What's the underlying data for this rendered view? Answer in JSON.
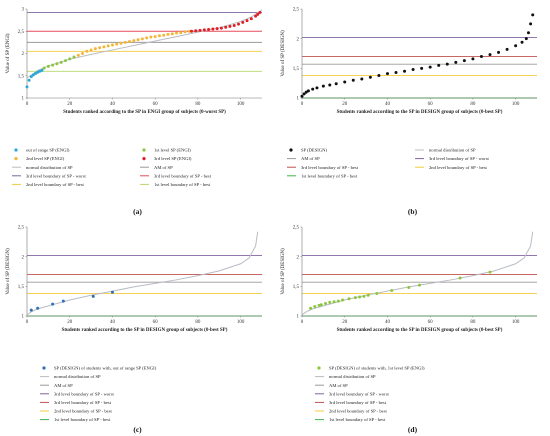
{
  "chart_data": [
    {
      "panel": "a",
      "type": "scatter",
      "panel_label": "(a)",
      "xlabel": "Students ranked according to the SP in ENGI group of subjects (0-worst SP)",
      "ylabel": "Value of SP (ENGI)",
      "xlim": [
        0,
        110
      ],
      "ylim": [
        1,
        3
      ],
      "xticks": [
        "0",
        "20",
        "40",
        "60",
        "80",
        "100"
      ],
      "yticks": [
        "1",
        "1,5",
        "2",
        "2,5",
        "3"
      ],
      "grid": false,
      "legend_columns": 2,
      "legend": [
        {
          "label": "out of range SP (ENGI)",
          "kind": "marker",
          "color": "#2ba8d6"
        },
        {
          "label": "1st level SP (ENGI)",
          "kind": "marker",
          "color": "#8cc63f"
        },
        {
          "label": "2nd level SP (ENGI)",
          "kind": "marker",
          "color": "#f4b63a"
        },
        {
          "label": "3rd level SP (ENGI)",
          "kind": "marker",
          "color": "#e21f26"
        },
        {
          "label": "normal distribution of SP",
          "kind": "line",
          "color": "#b8bcc4"
        },
        {
          "label": "AM of SP",
          "kind": "line",
          "color": "#9a9a9a"
        },
        {
          "label": "3rd level boundary of SP - worst",
          "kind": "line",
          "color": "#8064a2"
        },
        {
          "label": "3rd level boundary of SP - best",
          "kind": "line",
          "color": "#e64b5a"
        },
        {
          "label": "2nd level boundary of SP - best",
          "kind": "line",
          "color": "#f2cc3c"
        },
        {
          "label": "1st level boundary of SP - best",
          "kind": "line",
          "color": "#b7d86b"
        }
      ],
      "hlines": [
        {
          "name": "3rd level boundary of SP - worst",
          "y": 2.92,
          "color": "#8064a2"
        },
        {
          "name": "3rd level boundary of SP - best",
          "y": 2.5,
          "color": "#e64b5a"
        },
        {
          "name": "AM of SP",
          "y": 2.25,
          "color": "#9a9a9a"
        },
        {
          "name": "2nd level boundary of SP - best",
          "y": 2.05,
          "color": "#f2cc3c"
        },
        {
          "name": "1st level boundary of SP - best",
          "y": 1.6,
          "color": "#b7d86b"
        }
      ],
      "normal_curve": {
        "color": "#b8bcc4",
        "x": [
          0,
          5,
          10,
          20,
          30,
          40,
          50,
          60,
          70,
          80,
          90,
          100,
          105,
          110
        ],
        "y": [
          1.45,
          1.62,
          1.72,
          1.87,
          1.98,
          2.08,
          2.18,
          2.28,
          2.38,
          2.48,
          2.58,
          2.72,
          2.82,
          2.98
        ]
      },
      "series": [
        {
          "name": "out of range SP (ENGI)",
          "color": "#2ba8d6",
          "x": [
            0,
            1,
            2,
            3,
            4,
            5,
            6,
            7
          ],
          "y": [
            1.25,
            1.4,
            1.48,
            1.52,
            1.55,
            1.58,
            1.6,
            1.62
          ]
        },
        {
          "name": "1st level SP (ENGI)",
          "color": "#8cc63f",
          "x": [
            8,
            10,
            12,
            14,
            16,
            18,
            20,
            22
          ],
          "y": [
            1.67,
            1.71,
            1.74,
            1.77,
            1.8,
            1.84,
            1.88,
            1.92
          ]
        },
        {
          "name": "2nd level SP (ENGI)",
          "color": "#f4b63a",
          "x": [
            24,
            26,
            28,
            30,
            32,
            34,
            36,
            38,
            40,
            42,
            44,
            46,
            48,
            50,
            52,
            54,
            56,
            58,
            60,
            62,
            64,
            66,
            68,
            70,
            72,
            74,
            76
          ],
          "y": [
            1.96,
            2.0,
            2.05,
            2.08,
            2.11,
            2.13,
            2.15,
            2.17,
            2.19,
            2.21,
            2.23,
            2.25,
            2.27,
            2.29,
            2.31,
            2.33,
            2.35,
            2.37,
            2.38,
            2.4,
            2.41,
            2.43,
            2.44,
            2.46,
            2.47,
            2.49,
            2.5
          ]
        },
        {
          "name": "3rd level SP (ENGI)",
          "color": "#e21f26",
          "x": [
            77,
            79,
            81,
            83,
            85,
            87,
            89,
            91,
            93,
            95,
            97,
            99,
            101,
            103,
            105,
            107,
            108,
            109
          ],
          "y": [
            2.5,
            2.51,
            2.52,
            2.53,
            2.54,
            2.55,
            2.56,
            2.57,
            2.59,
            2.61,
            2.63,
            2.66,
            2.7,
            2.74,
            2.78,
            2.84,
            2.88,
            2.92
          ]
        }
      ]
    },
    {
      "panel": "b",
      "type": "scatter",
      "panel_label": "(b)",
      "xlabel": "Students ranked according to the SP in DESIGN group of subjects (0-best SP)",
      "ylabel": "Value of SP (DESIGN)",
      "xlim": [
        0,
        110
      ],
      "ylim": [
        1,
        2.5
      ],
      "xticks": [
        "0",
        "20",
        "40",
        "60",
        "80",
        "100"
      ],
      "yticks": [
        "1",
        "1,5",
        "2",
        "2,5"
      ],
      "grid": false,
      "legend_columns": 2,
      "legend": [
        {
          "label": "SP (DESIGN)",
          "kind": "marker",
          "color": "#111111"
        },
        {
          "label": "normal distribution of SP",
          "kind": "line",
          "color": "#b8bcc4"
        },
        {
          "label": "AM of SP",
          "kind": "line",
          "color": "#9a9a9a"
        },
        {
          "label": "3rd level boundary of SP - worst",
          "kind": "line",
          "color": "#8064a2"
        },
        {
          "label": "3rd level boundary of SP - best",
          "kind": "line",
          "color": "#c0504d"
        },
        {
          "label": "2nd level boundary of SP - best",
          "kind": "line",
          "color": "#f2cc3c"
        },
        {
          "label": "1st level boundary of SP - best",
          "kind": "line",
          "color": "#3ab54a"
        }
      ],
      "hlines": [
        {
          "name": "3rd level boundary of SP - worst",
          "y": 2.02,
          "color": "#8064a2"
        },
        {
          "name": "3rd level boundary of SP - best",
          "y": 1.7,
          "color": "#c0504d"
        },
        {
          "name": "AM of SP",
          "y": 1.57,
          "color": "#9a9a9a"
        },
        {
          "name": "2nd level boundary of SP - best",
          "y": 1.38,
          "color": "#f2cc3c"
        },
        {
          "name": "1st level boundary of SP - best",
          "y": 1.0,
          "color": "#3ab54a"
        }
      ],
      "normal_curve": null,
      "series": [
        {
          "name": "SP (DESIGN)",
          "color": "#111111",
          "x": [
            0,
            1,
            2,
            3,
            5,
            7,
            10,
            13,
            16,
            20,
            24,
            28,
            32,
            36,
            40,
            44,
            48,
            52,
            56,
            60,
            64,
            68,
            72,
            76,
            80,
            84,
            88,
            92,
            96,
            100,
            103,
            105,
            106,
            107,
            108
          ],
          "y": [
            1.03,
            1.07,
            1.1,
            1.12,
            1.15,
            1.17,
            1.2,
            1.22,
            1.24,
            1.27,
            1.3,
            1.32,
            1.35,
            1.38,
            1.41,
            1.43,
            1.45,
            1.48,
            1.5,
            1.52,
            1.55,
            1.57,
            1.6,
            1.63,
            1.66,
            1.7,
            1.73,
            1.77,
            1.82,
            1.88,
            1.94,
            2.0,
            2.1,
            2.25,
            2.4
          ]
        }
      ]
    },
    {
      "panel": "c",
      "type": "scatter",
      "panel_label": "(c)",
      "xlabel": "Students ranked according to the SP in DESIGN group of subjects (0-best SP)",
      "ylabel": "Value of SP (DESIGN)",
      "xlim": [
        0,
        110
      ],
      "ylim": [
        1,
        2.5
      ],
      "xticks": [
        "0",
        "20",
        "40",
        "60",
        "80",
        "100"
      ],
      "yticks": [
        "1",
        "1,5",
        "2",
        "2,5"
      ],
      "grid": false,
      "legend_columns": 1,
      "legend": [
        {
          "label": "SP (DESIGN) of students with, out of range SP (ENGI)",
          "kind": "marker",
          "color": "#2f6fb5"
        },
        {
          "label": "normal distribution of SP",
          "kind": "line",
          "color": "#b8bcc4"
        },
        {
          "label": "AM of SP",
          "kind": "line",
          "color": "#9a9a9a"
        },
        {
          "label": "3rd level boundary of SP - worst",
          "kind": "line",
          "color": "#8064a2"
        },
        {
          "label": "3rd level boundary of SP - best",
          "kind": "line",
          "color": "#c0504d"
        },
        {
          "label": "2nd level boundary of SP - best",
          "kind": "line",
          "color": "#f2cc3c"
        },
        {
          "label": "1st level boundary of SP - best",
          "kind": "line",
          "color": "#3ab54a"
        }
      ],
      "hlines": [
        {
          "name": "3rd level boundary of SP - worst",
          "y": 2.02,
          "color": "#8064a2"
        },
        {
          "name": "3rd level boundary of SP - best",
          "y": 1.7,
          "color": "#c0504d"
        },
        {
          "name": "AM of SP",
          "y": 1.57,
          "color": "#9a9a9a"
        },
        {
          "name": "2nd level boundary of SP - best",
          "y": 1.38,
          "color": "#f2cc3c"
        },
        {
          "name": "1st level boundary of SP - best",
          "y": 1.0,
          "color": "#3ab54a"
        }
      ],
      "normal_curve": {
        "color": "#b8bcc4",
        "x": [
          0,
          2,
          5,
          10,
          20,
          30,
          40,
          50,
          60,
          70,
          80,
          90,
          100,
          104,
          107,
          108
        ],
        "y": [
          1.02,
          1.07,
          1.12,
          1.17,
          1.27,
          1.35,
          1.42,
          1.49,
          1.55,
          1.61,
          1.68,
          1.76,
          1.88,
          1.98,
          2.18,
          2.42
        ]
      },
      "series": [
        {
          "name": "SP (DESIGN) of students with, out of range SP (ENGI)",
          "color": "#2f6fb5",
          "x": [
            2,
            5,
            12,
            17,
            31,
            40
          ],
          "y": [
            1.1,
            1.13,
            1.2,
            1.25,
            1.33,
            1.4
          ]
        }
      ]
    },
    {
      "panel": "d",
      "type": "scatter",
      "panel_label": "(d)",
      "xlabel": "Students ranked according to the SP in DESIGN group of subjects (0-best SP)",
      "ylabel": "Value of SP (DESIGN)",
      "xlim": [
        0,
        110
      ],
      "ylim": [
        1,
        2.5
      ],
      "xticks": [
        "0",
        "20",
        "40",
        "60",
        "80",
        "100"
      ],
      "yticks": [
        "1",
        "1,5",
        "2",
        "2,5"
      ],
      "grid": false,
      "legend_columns": 1,
      "legend": [
        {
          "label": "SP (DESIGN) of students with, 1st level SP (ENGI)",
          "kind": "marker",
          "color": "#8cc63f"
        },
        {
          "label": "normal distribution of SP",
          "kind": "line",
          "color": "#b8bcc4"
        },
        {
          "label": "AM of SP",
          "kind": "line",
          "color": "#9a9a9a"
        },
        {
          "label": "3rd level boundary of SP - worst",
          "kind": "line",
          "color": "#8064a2"
        },
        {
          "label": "3rd level boundary of SP - best",
          "kind": "line",
          "color": "#c0504d"
        },
        {
          "label": "2nd level boundary of SP - best",
          "kind": "line",
          "color": "#f2cc3c"
        },
        {
          "label": "1st level boundary of SP - best",
          "kind": "line",
          "color": "#3ab54a"
        }
      ],
      "hlines": [
        {
          "name": "3rd level boundary of SP - worst",
          "y": 2.02,
          "color": "#8064a2"
        },
        {
          "name": "3rd level boundary of SP - best",
          "y": 1.7,
          "color": "#c0504d"
        },
        {
          "name": "AM of SP",
          "y": 1.57,
          "color": "#9a9a9a"
        },
        {
          "name": "2nd level boundary of SP - best",
          "y": 1.38,
          "color": "#f2cc3c"
        },
        {
          "name": "1st level boundary of SP - best",
          "y": 1.0,
          "color": "#3ab54a"
        }
      ],
      "normal_curve": {
        "color": "#b8bcc4",
        "x": [
          0,
          2,
          5,
          10,
          20,
          30,
          40,
          50,
          60,
          70,
          80,
          90,
          100,
          104,
          107,
          108
        ],
        "y": [
          1.02,
          1.07,
          1.12,
          1.17,
          1.27,
          1.35,
          1.42,
          1.49,
          1.55,
          1.61,
          1.68,
          1.76,
          1.88,
          1.98,
          2.18,
          2.42
        ]
      },
      "series": [
        {
          "name": "SP (DESIGN) of students with, 1st level SP (ENGI)",
          "color": "#8cc63f",
          "x": [
            4,
            6,
            8,
            9,
            11,
            13,
            15,
            17,
            19,
            22,
            25,
            27,
            29,
            31,
            35,
            42,
            50,
            55,
            74,
            88
          ],
          "y": [
            1.13,
            1.16,
            1.18,
            1.19,
            1.21,
            1.23,
            1.24,
            1.25,
            1.27,
            1.29,
            1.31,
            1.32,
            1.33,
            1.35,
            1.38,
            1.43,
            1.48,
            1.52,
            1.64,
            1.74
          ]
        }
      ]
    }
  ]
}
